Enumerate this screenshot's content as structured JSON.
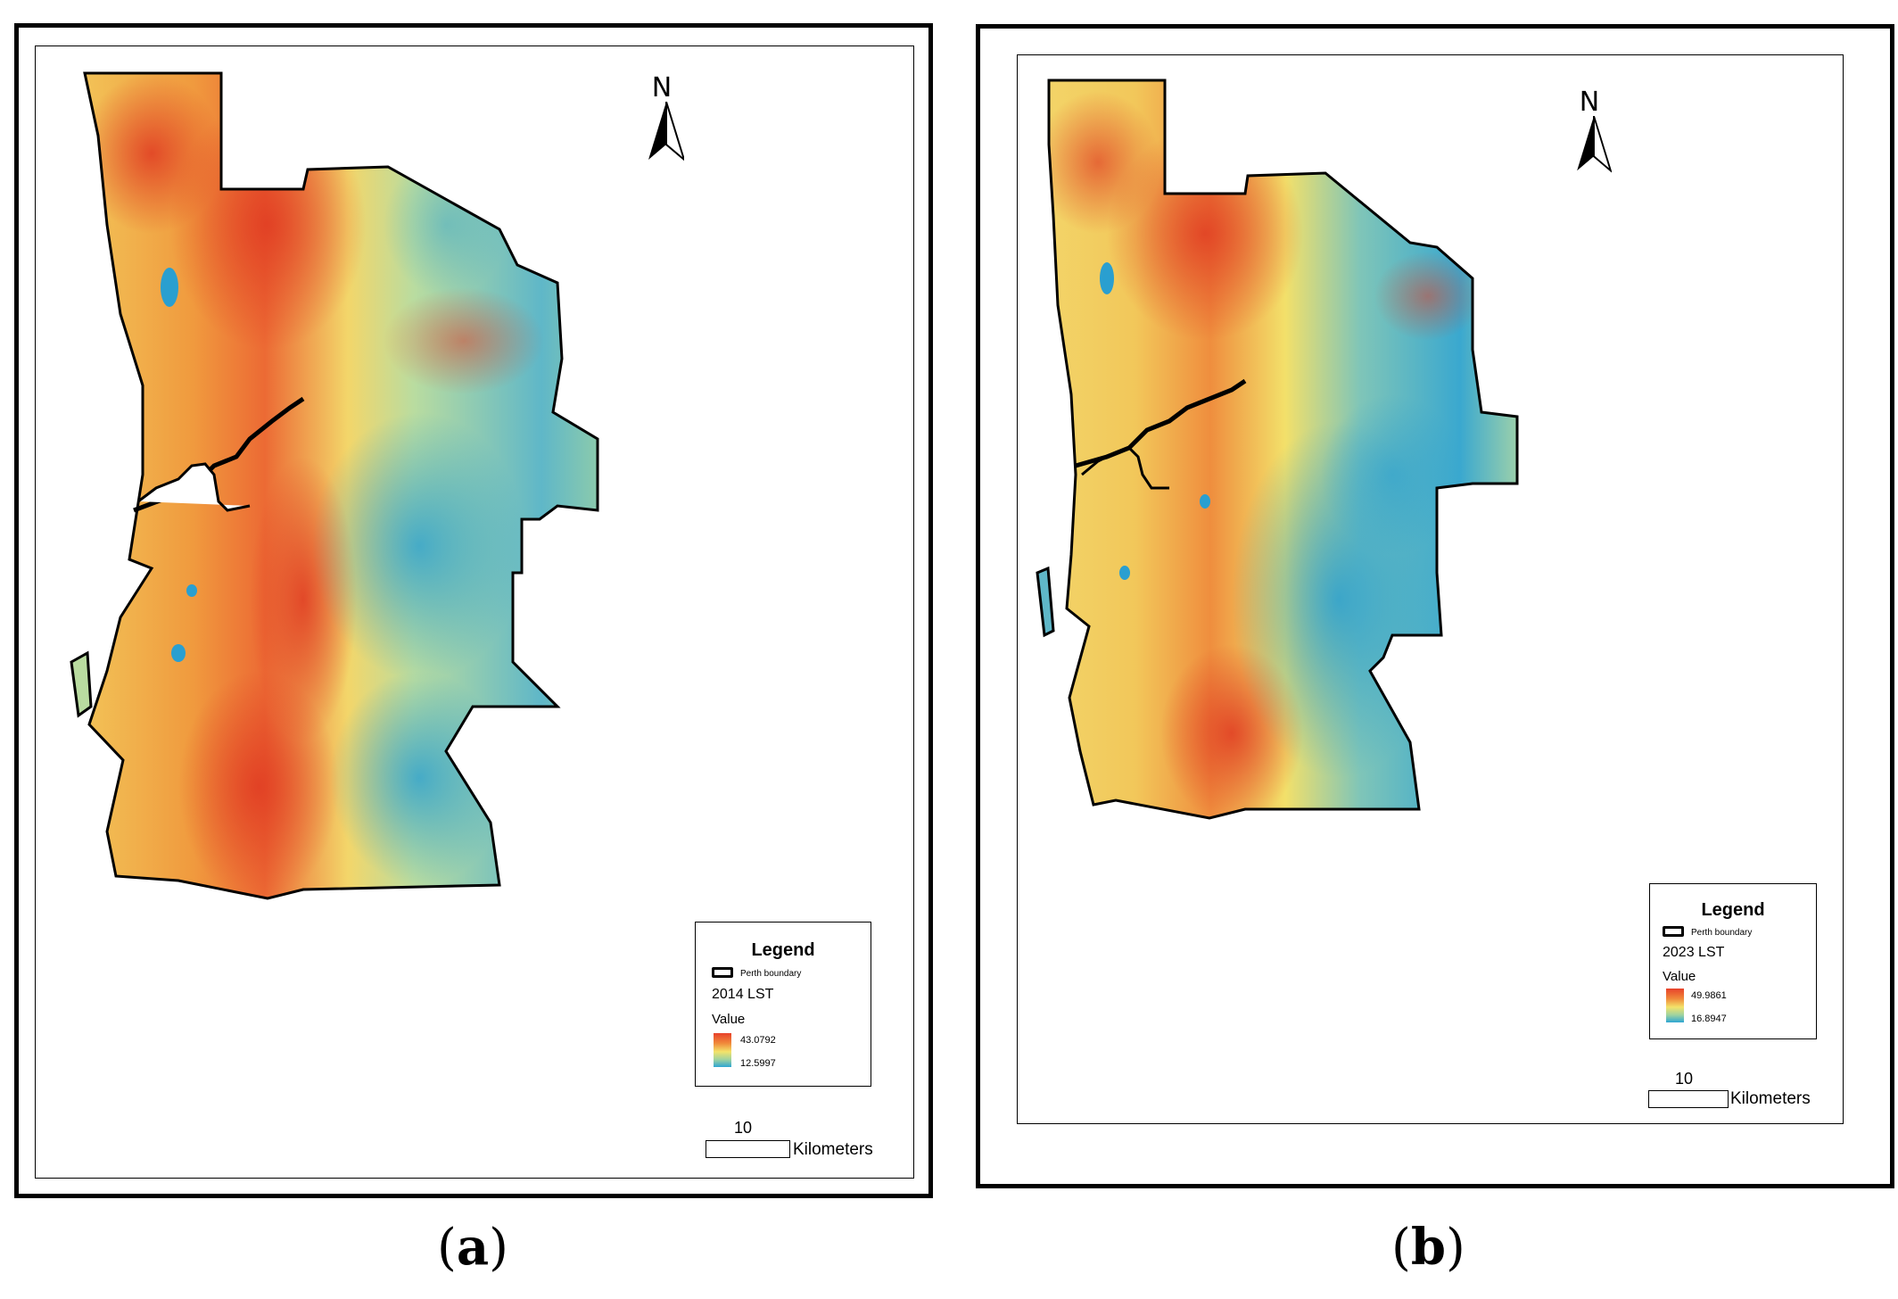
{
  "panels": [
    {
      "id": "a",
      "north_label": "N",
      "legend": {
        "title": "Legend",
        "boundary_label": "Perth boundary",
        "layer_name": "2014 LST",
        "value_label": "Value",
        "max": "43.0792",
        "min": "12.5997"
      },
      "scale": {
        "number": "10",
        "unit": "Kilometers"
      },
      "caption_letter": "a"
    },
    {
      "id": "b",
      "north_label": "N",
      "legend": {
        "title": "Legend",
        "boundary_label": "Perth boundary",
        "layer_name": "2023 LST",
        "value_label": "Value",
        "max": "49.9861",
        "min": "16.8947"
      },
      "scale": {
        "number": "10",
        "unit": "Kilometers"
      },
      "caption_letter": "b"
    }
  ],
  "colors": {
    "hot": "#e8412a",
    "warm": "#f08a3a",
    "mid": "#f3e36a",
    "cool": "#9fd3a0",
    "cold": "#2ea6d3",
    "boundary": "#000000"
  }
}
